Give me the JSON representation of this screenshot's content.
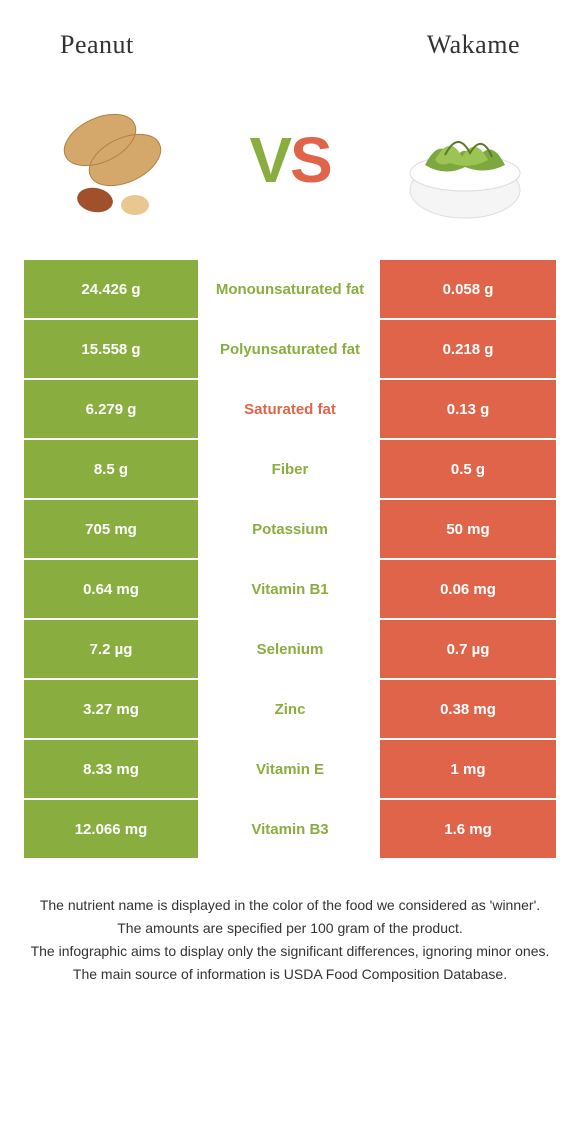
{
  "header": {
    "left_title": "Peanut",
    "right_title": "Wakame",
    "vs_v": "V",
    "vs_s": "S"
  },
  "colors": {
    "left": "#8aad3f",
    "right": "#e0644a",
    "winner_left_text": "#8aad3f",
    "winner_right_text": "#e0644a"
  },
  "rows": [
    {
      "left": "24.426 g",
      "label": "Monounsaturated fat",
      "right": "0.058 g",
      "winner": "left"
    },
    {
      "left": "15.558 g",
      "label": "Polyunsaturated fat",
      "right": "0.218 g",
      "winner": "left"
    },
    {
      "left": "6.279 g",
      "label": "Saturated fat",
      "right": "0.13 g",
      "winner": "right"
    },
    {
      "left": "8.5 g",
      "label": "Fiber",
      "right": "0.5 g",
      "winner": "left"
    },
    {
      "left": "705 mg",
      "label": "Potassium",
      "right": "50 mg",
      "winner": "left"
    },
    {
      "left": "0.64 mg",
      "label": "Vitamin B1",
      "right": "0.06 mg",
      "winner": "left"
    },
    {
      "left": "7.2 µg",
      "label": "Selenium",
      "right": "0.7 µg",
      "winner": "left"
    },
    {
      "left": "3.27 mg",
      "label": "Zinc",
      "right": "0.38 mg",
      "winner": "left"
    },
    {
      "left": "8.33 mg",
      "label": "Vitamin E",
      "right": "1 mg",
      "winner": "left"
    },
    {
      "left": "12.066 mg",
      "label": "Vitamin B3",
      "right": "1.6 mg",
      "winner": "left"
    }
  ],
  "footer": {
    "line1": "The nutrient name is displayed in the color of the food we considered as 'winner'.",
    "line2": "The amounts are specified per 100 gram of the product.",
    "line3": "The infographic aims to display only the significant differences, ignoring minor ones.",
    "line4": "The main source of information is USDA Food Composition Database."
  }
}
